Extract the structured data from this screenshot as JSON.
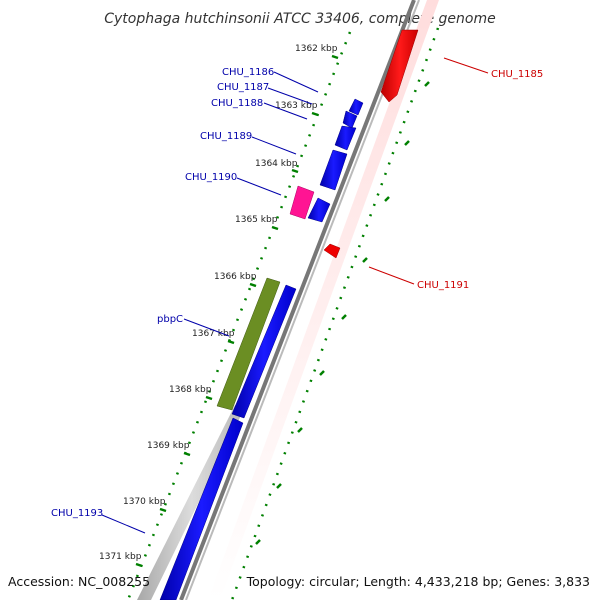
{
  "title": "Cytophaga hutchinsonii ATCC 33406, complete genome",
  "accession": "Accession: NC_008255",
  "summary": "Topology: circular; Length: 4,433,218 bp; Genes: 3,833",
  "colors": {
    "forward_cds": "#ff0000",
    "reverse_cds": "#0000ff",
    "label_forward": "#cc0000",
    "label_reverse": "#0000aa",
    "backbone": "#888888",
    "tick": "#008000",
    "rna_magenta": "#ff1493",
    "pbp_olive": "#6b8e23",
    "gc_skew_grey": "#c8c8c8"
  },
  "kbp_ticks": [
    {
      "label": "1362 kbp",
      "kbp": 1362
    },
    {
      "label": "1363 kbp",
      "kbp": 1363
    },
    {
      "label": "1364 kbp",
      "kbp": 1364
    },
    {
      "label": "1365 kbp",
      "kbp": 1365
    },
    {
      "label": "1366 kbp",
      "kbp": 1366
    },
    {
      "label": "1367 kbp",
      "kbp": 1367
    },
    {
      "label": "1368 kbp",
      "kbp": 1368
    },
    {
      "label": "1369 kbp",
      "kbp": 1369
    },
    {
      "label": "1370 kbp",
      "kbp": 1370
    },
    {
      "label": "1371 kbp",
      "kbp": 1371
    }
  ],
  "genes": [
    {
      "name": "CHU_1185",
      "strand": "forward"
    },
    {
      "name": "CHU_1186",
      "strand": "reverse"
    },
    {
      "name": "CHU_1187",
      "strand": "reverse"
    },
    {
      "name": "CHU_1188",
      "strand": "reverse"
    },
    {
      "name": "CHU_1189",
      "strand": "reverse"
    },
    {
      "name": "CHU_1190",
      "strand": "reverse"
    },
    {
      "name": "CHU_1191",
      "strand": "forward"
    },
    {
      "name": "pbpC",
      "strand": "reverse"
    },
    {
      "name": "CHU_1193",
      "strand": "reverse"
    }
  ]
}
